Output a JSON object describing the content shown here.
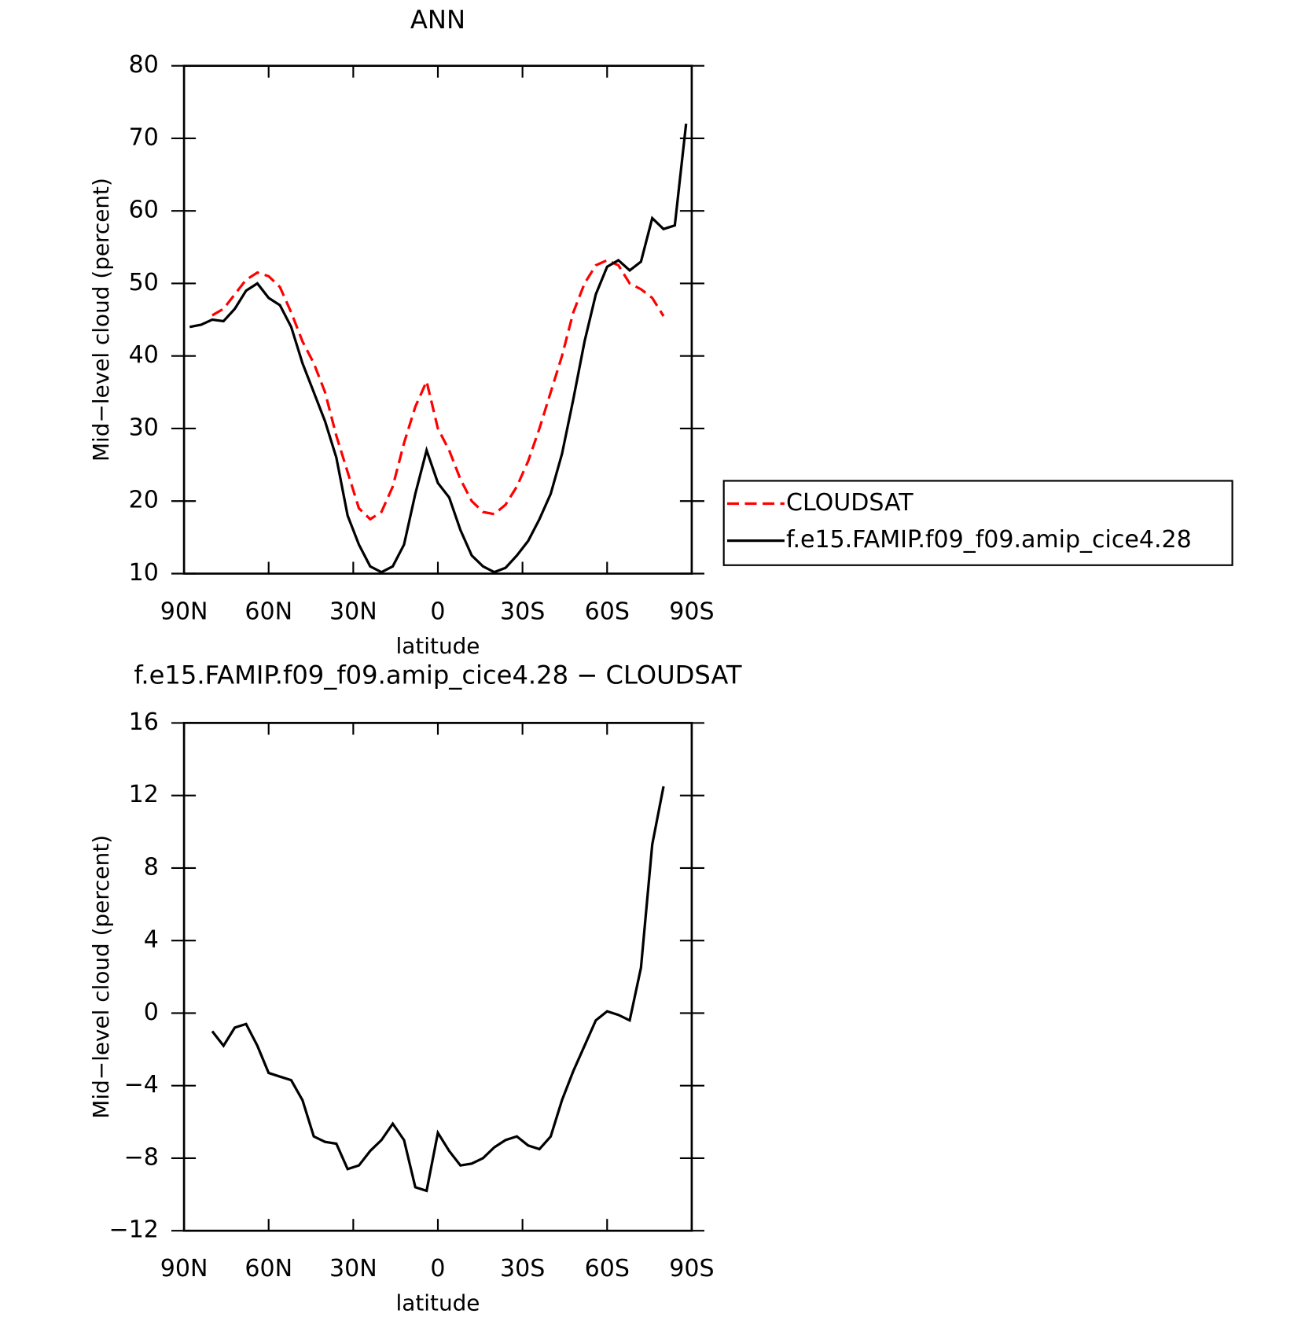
{
  "chart_data": [
    {
      "type": "line",
      "title": "ANN",
      "xlabel": "latitude",
      "ylabel": "Mid−level cloud (percent)",
      "x": [
        88,
        84,
        80,
        76,
        72,
        68,
        64,
        60,
        56,
        52,
        48,
        44,
        40,
        36,
        32,
        28,
        24,
        20,
        16,
        12,
        8,
        4,
        0,
        -4,
        -8,
        -12,
        -16,
        -20,
        -24,
        -28,
        -32,
        -36,
        -40,
        -44,
        -48,
        -52,
        -56,
        -60,
        -64,
        -68,
        -72,
        -76,
        -80,
        -84,
        -88
      ],
      "series": [
        {
          "name": "CLOUDSAT",
          "color": "#ff0000",
          "line_style": "dashed",
          "values": [
            null,
            null,
            45.6,
            46.5,
            48.5,
            50.5,
            51.5,
            51,
            49.5,
            46,
            42,
            39,
            35,
            29,
            24,
            19,
            17.5,
            18.5,
            22,
            28,
            33,
            36.5,
            30,
            27,
            23,
            20,
            18.5,
            18.2,
            19.5,
            22,
            25.5,
            30,
            35,
            40,
            46,
            50,
            52.5,
            53.2,
            52.5,
            50,
            49.2,
            48,
            45.5,
            null,
            null
          ]
        },
        {
          "name": "f.e15.FAMIP.f09_f09.amip_cice4.28",
          "color": "#000000",
          "line_style": "solid",
          "values": [
            44,
            44.3,
            45,
            44.8,
            46.5,
            49,
            50,
            48,
            47,
            44,
            39,
            35,
            31,
            26,
            18,
            14,
            11,
            10.2,
            11,
            14,
            21,
            27,
            22.5,
            20.5,
            16,
            12.5,
            11,
            10.2,
            10.8,
            12.5,
            14.5,
            17.5,
            21,
            26.5,
            34,
            42,
            48.5,
            52.3,
            53.2,
            51.8,
            53,
            59,
            57.5,
            58,
            72
          ]
        }
      ],
      "xlim": [
        90,
        -90
      ],
      "xticks": [
        {
          "value": 90,
          "label": "90N"
        },
        {
          "value": 60,
          "label": "60N"
        },
        {
          "value": 30,
          "label": "30N"
        },
        0,
        {
          "value": -30,
          "label": "30S"
        },
        {
          "value": -60,
          "label": "60S"
        },
        {
          "value": -90,
          "label": "90S"
        }
      ],
      "ylim": [
        10,
        80
      ],
      "yticks": [
        10,
        20,
        30,
        40,
        50,
        60,
        70,
        80
      ],
      "legend": "right"
    },
    {
      "type": "line",
      "title": "f.e15.FAMIP.f09_f09.amip_cice4.28 − CLOUDSAT",
      "xlabel": "latitude",
      "ylabel": "Mid−level cloud (percent)",
      "x": [
        88,
        84,
        80,
        76,
        72,
        68,
        64,
        60,
        56,
        52,
        48,
        44,
        40,
        36,
        32,
        28,
        24,
        20,
        16,
        12,
        8,
        4,
        0,
        -4,
        -8,
        -12,
        -16,
        -20,
        -24,
        -28,
        -32,
        -36,
        -40,
        -44,
        -48,
        -52,
        -56,
        -60,
        -64,
        -68,
        -72,
        -76,
        -80,
        -84,
        -88
      ],
      "series": [
        {
          "color": "#000000",
          "line_style": "solid",
          "values": [
            null,
            null,
            -1.0,
            -1.8,
            -0.8,
            -0.6,
            -1.8,
            -3.3,
            -3.5,
            -3.7,
            -4.8,
            -6.8,
            -7.1,
            -7.2,
            -8.6,
            -8.4,
            -7.6,
            -7.0,
            -6.1,
            -7.0,
            -9.6,
            -9.8,
            -6.6,
            -7.6,
            -8.4,
            -8.3,
            -8.0,
            -7.4,
            -7.0,
            -6.8,
            -7.3,
            -7.5,
            -6.8,
            -4.8,
            -3.2,
            -1.8,
            -0.4,
            0.1,
            -0.1,
            -0.4,
            2.5,
            9.3,
            12.5,
            null,
            null
          ]
        }
      ],
      "xlim": [
        90,
        -90
      ],
      "xticks": [
        {
          "value": 90,
          "label": "90N"
        },
        {
          "value": 60,
          "label": "60N"
        },
        {
          "value": 30,
          "label": "30N"
        },
        0,
        {
          "value": -30,
          "label": "30S"
        },
        {
          "value": -60,
          "label": "60S"
        },
        {
          "value": -90,
          "label": "90S"
        }
      ],
      "ylim": [
        -12,
        16
      ],
      "yticks": [
        {
          "value": -12,
          "label": "−12"
        },
        {
          "value": -8,
          "label": "−8"
        },
        {
          "value": -4,
          "label": "−4"
        },
        0,
        4,
        8,
        12,
        16
      ]
    }
  ]
}
